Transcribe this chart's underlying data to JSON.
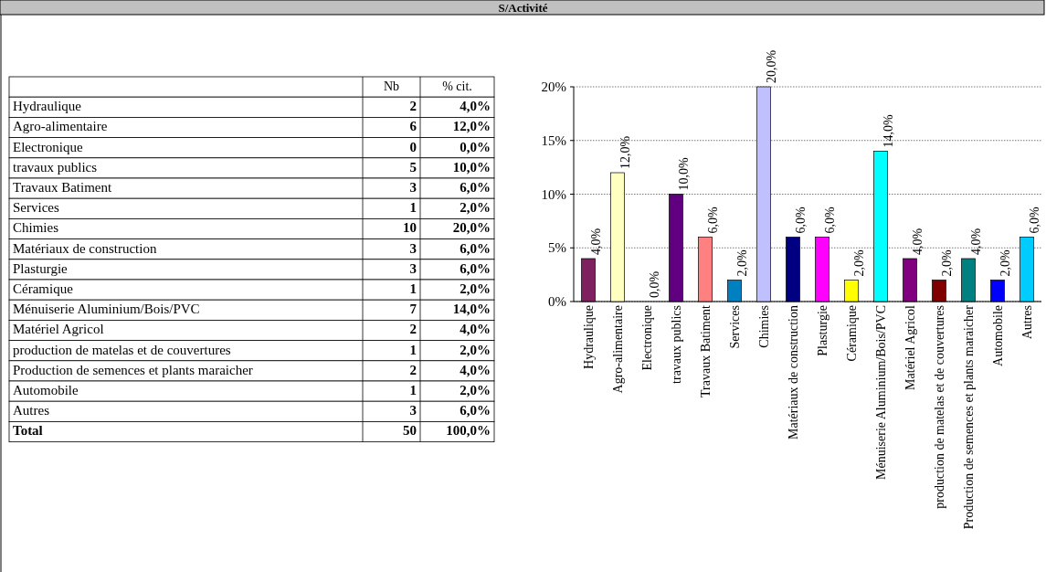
{
  "chart_data": [
    {
      "type": "other",
      "title": "S/Activité",
      "data_labels": true,
      "categories": [
        "Hydraulique",
        "Agro-alimentaire",
        "Electronique",
        "travaux publics",
        "Travaux Batiment",
        "Services",
        "Chimies",
        "Matériaux de construction",
        "Plasturgie",
        "Céramique",
        "Ménuiserie Aluminium/Bois/PVC",
        "Matériel Agricol",
        "production de matelas et de couvertures",
        "Production de semences et plants maraicher",
        "Automobile",
        "Autres",
        "Total"
      ],
      "series": [
        {
          "name": "Nb",
          "values": [
            2,
            6,
            0,
            5,
            3,
            1,
            10,
            3,
            3,
            1,
            7,
            2,
            1,
            2,
            1,
            3,
            50
          ]
        },
        {
          "name": "% cit.",
          "values": [
            4,
            12,
            0,
            10,
            6,
            2,
            20,
            6,
            6,
            2,
            14,
            4,
            2,
            4,
            2,
            6,
            100
          ],
          "value_labels": [
            "4,0%",
            "12,0%",
            "0,0%",
            "10,0%",
            "6,0%",
            "2,0%",
            "20,0%",
            "6,0%",
            "6,0%",
            "2,0%",
            "14,0%",
            "4,0%",
            "2,0%",
            "4,0%",
            "2,0%",
            "6,0%",
            "100,0%"
          ]
        }
      ]
    },
    {
      "type": "bar",
      "categories": [
        "Hydraulique",
        "Agro-alimentaire",
        "Electronique",
        "travaux publics",
        "Travaux Batiment",
        "Services",
        "Chimies",
        "Matériaux de construction",
        "Plasturgie",
        "Céramique",
        "Ménuiserie Aluminium/Bois/PVC",
        "Matériel Agricol",
        "production de matelas et de couvertures",
        "Production de semences et plants maraicher",
        "Automobile",
        "Autres"
      ],
      "values": [
        4,
        12,
        0,
        10,
        6,
        2,
        20,
        6,
        6,
        2,
        14,
        4,
        2,
        4,
        2,
        6
      ],
      "value_labels": [
        "4,0%",
        "12,0%",
        "0,0%",
        "10,0%",
        "6,0%",
        "2,0%",
        "20,0%",
        "6,0%",
        "6,0%",
        "2,0%",
        "14,0%",
        "4,0%",
        "2,0%",
        "4,0%",
        "2,0%",
        "6,0%"
      ],
      "colors": [
        "#7f2060",
        "#ffffc0",
        "#a0a0a0",
        "#600080",
        "#ff8080",
        "#0080c0",
        "#c0c0ff",
        "#000080",
        "#ff00ff",
        "#ffff00",
        "#00ffff",
        "#800080",
        "#800000",
        "#008080",
        "#0000ff",
        "#00ccff"
      ],
      "ylim": [
        0,
        20
      ],
      "yticks": [
        {
          "value": 0,
          "label": "0%"
        },
        {
          "value": 5,
          "label": "5%"
        },
        {
          "value": 10,
          "label": "10%"
        },
        {
          "value": 15,
          "label": "15%"
        },
        {
          "value": 20,
          "label": "20%"
        }
      ],
      "grid": "y"
    }
  ]
}
